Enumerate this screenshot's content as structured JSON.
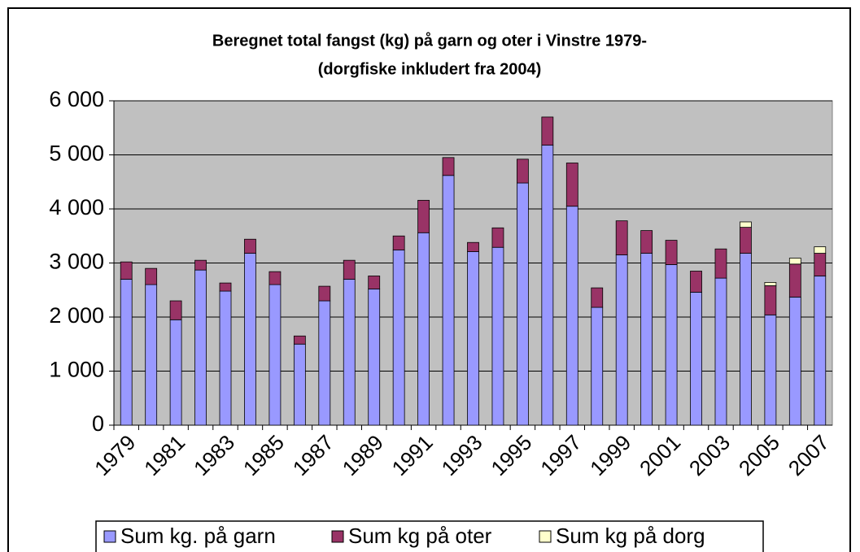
{
  "chart_data": {
    "type": "stacked-bar",
    "title": "Beregnet total fangst (kg)  på garn og oter i Vinstre 1979-",
    "subtitle": "(dorgfiske inkludert fra 2004)",
    "categories": [
      "1979",
      null,
      "1981",
      null,
      "1983",
      null,
      "1985",
      null,
      "1987",
      null,
      "1989",
      null,
      "1991",
      null,
      "1993",
      null,
      "1995",
      null,
      "1997",
      null,
      "1999",
      null,
      "2001",
      null,
      "2003",
      null,
      "2005",
      null,
      "2007"
    ],
    "series": [
      {
        "name": "Sum kg. på garn",
        "color": "#9999ff",
        "values": [
          2700,
          2600,
          1950,
          2870,
          2480,
          3180,
          2600,
          1500,
          2300,
          2700,
          2520,
          3240,
          3560,
          4620,
          3210,
          3290,
          4480,
          5180,
          4050,
          2180,
          3150,
          3180,
          2970,
          2460,
          2720,
          3180,
          2040,
          2370,
          2760
        ]
      },
      {
        "name": "Sum kg på oter",
        "color": "#993366",
        "values": [
          320,
          300,
          350,
          180,
          150,
          260,
          240,
          150,
          270,
          350,
          240,
          260,
          600,
          330,
          170,
          360,
          440,
          520,
          800,
          360,
          630,
          420,
          450,
          390,
          540,
          480,
          540,
          610,
          420
        ]
      },
      {
        "name": "Sum kg på dorg",
        "color": "#ffffcc",
        "values": [
          null,
          null,
          null,
          null,
          null,
          null,
          null,
          null,
          null,
          null,
          null,
          null,
          null,
          null,
          null,
          null,
          null,
          null,
          null,
          null,
          null,
          null,
          null,
          null,
          null,
          100,
          60,
          110,
          120
        ]
      }
    ],
    "ylim": [
      0,
      6000
    ],
    "yticks": [
      0,
      {
        "value": 1000,
        "label": "1 000"
      },
      {
        "value": 2000,
        "label": "2 000"
      },
      {
        "value": 3000,
        "label": "3 000"
      },
      {
        "value": 4000,
        "label": "4 000"
      },
      {
        "value": 5000,
        "label": "5 000"
      },
      {
        "value": 6000,
        "label": "6 000"
      }
    ],
    "grid": true,
    "legend": "bottom",
    "plot_background": "#c0c0c0"
  }
}
